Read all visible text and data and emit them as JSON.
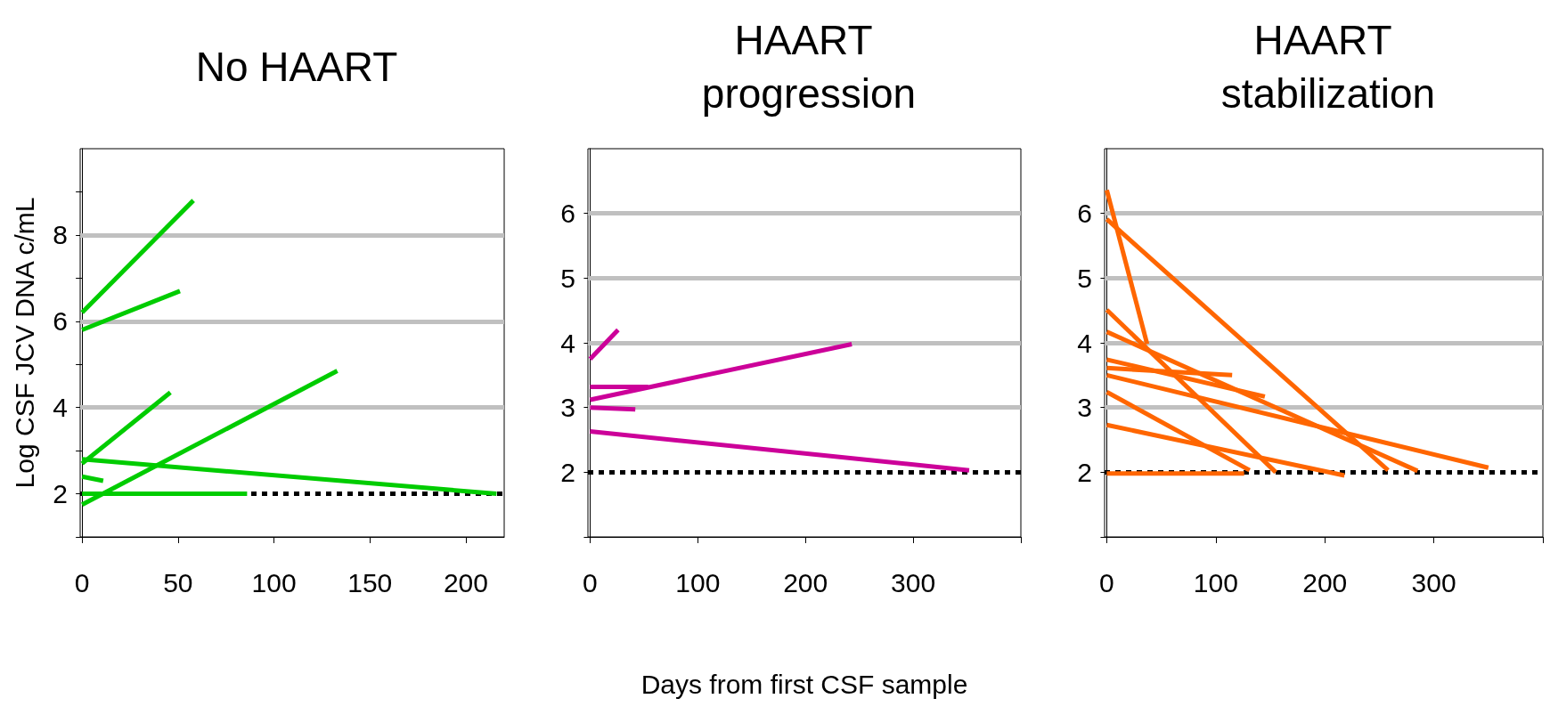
{
  "chart_data": [
    {
      "type": "line",
      "title": "No HAART",
      "ylabel": "Log CSF JCV DNA c/mL",
      "marker": "none",
      "xlim": [
        -1,
        220
      ],
      "xticks": [
        0,
        50,
        100,
        150,
        200
      ],
      "ylim": [
        1,
        10
      ],
      "yticks": [
        {
          "value": 1,
          "label": null
        },
        2,
        {
          "value": 3,
          "label": null
        },
        4,
        {
          "value": 5,
          "label": null
        },
        6,
        {
          "value": 7,
          "label": null
        },
        8,
        {
          "value": 9,
          "label": null
        }
      ],
      "ref_lines": [
        {
          "axis": "y",
          "value": 4,
          "color": "#c0c0c0",
          "line_style": "solid"
        },
        {
          "axis": "y",
          "value": 6,
          "color": "#c0c0c0",
          "line_style": "solid"
        },
        {
          "axis": "y",
          "value": 8,
          "color": "#c0c0c0",
          "line_style": "solid"
        },
        {
          "axis": "y",
          "value": 2,
          "color": "#000000",
          "line_style": "dotted"
        }
      ],
      "series": [
        {
          "color": "#00cc00",
          "x": [
            0,
            58
          ],
          "values": [
            6.2,
            8.8
          ]
        },
        {
          "color": "#00cc00",
          "x": [
            0,
            51
          ],
          "values": [
            5.8,
            6.7
          ]
        },
        {
          "color": "#00cc00",
          "x": [
            0,
            46
          ],
          "values": [
            2.7,
            4.35
          ]
        },
        {
          "color": "#00cc00",
          "x": [
            0,
            133
          ],
          "values": [
            1.75,
            4.85
          ]
        },
        {
          "color": "#00cc00",
          "x": [
            0,
            216
          ],
          "values": [
            2.8,
            2.0
          ]
        },
        {
          "color": "#00cc00",
          "x": [
            0,
            11
          ],
          "values": [
            2.4,
            2.3
          ]
        },
        {
          "color": "#00cc00",
          "x": [
            0,
            86
          ],
          "values": [
            2.0,
            2.0
          ]
        }
      ]
    },
    {
      "type": "line",
      "title": "HAART progression",
      "xlabel": "Days from first CSF sample",
      "marker": "none",
      "xlim": [
        -2,
        400
      ],
      "xticks": [
        0,
        100,
        200,
        300,
        {
          "value": 400,
          "label": null
        }
      ],
      "ylim": [
        1,
        7
      ],
      "yticks": [
        {
          "value": 1,
          "label": null
        },
        2,
        3,
        4,
        5,
        6
      ],
      "ref_lines": [
        {
          "axis": "y",
          "value": 3,
          "color": "#c0c0c0",
          "line_style": "solid"
        },
        {
          "axis": "y",
          "value": 4,
          "color": "#c0c0c0",
          "line_style": "solid"
        },
        {
          "axis": "y",
          "value": 5,
          "color": "#c0c0c0",
          "line_style": "solid"
        },
        {
          "axis": "y",
          "value": 6,
          "color": "#c0c0c0",
          "line_style": "solid"
        },
        {
          "axis": "y",
          "value": 2,
          "color": "#000000",
          "line_style": "dotted"
        }
      ],
      "series": [
        {
          "color": "#cc0099",
          "x": [
            0,
            26
          ],
          "values": [
            3.75,
            4.2
          ]
        },
        {
          "color": "#cc0099",
          "x": [
            0,
            54
          ],
          "values": [
            3.32,
            3.32
          ]
        },
        {
          "color": "#cc0099",
          "x": [
            0,
            243
          ],
          "values": [
            3.12,
            3.98
          ]
        },
        {
          "color": "#cc0099",
          "x": [
            0,
            42
          ],
          "values": [
            3.0,
            2.97
          ]
        },
        {
          "color": "#cc0099",
          "x": [
            0,
            352
          ],
          "values": [
            2.63,
            2.03
          ]
        }
      ]
    },
    {
      "type": "line",
      "title": "HAART stabilization",
      "marker": "none",
      "xlim": [
        -2,
        400
      ],
      "xticks": [
        0,
        100,
        200,
        300,
        {
          "value": 400,
          "label": null
        }
      ],
      "ylim": [
        1,
        7
      ],
      "yticks": [
        {
          "value": 1,
          "label": null
        },
        2,
        3,
        4,
        5,
        6
      ],
      "ref_lines": [
        {
          "axis": "y",
          "value": 3,
          "color": "#c0c0c0",
          "line_style": "solid"
        },
        {
          "axis": "y",
          "value": 4,
          "color": "#c0c0c0",
          "line_style": "solid"
        },
        {
          "axis": "y",
          "value": 5,
          "color": "#c0c0c0",
          "line_style": "solid"
        },
        {
          "axis": "y",
          "value": 6,
          "color": "#c0c0c0",
          "line_style": "solid"
        },
        {
          "axis": "y",
          "value": 2,
          "color": "#000000",
          "line_style": "dotted"
        }
      ],
      "series": [
        {
          "color": "#ff6600",
          "x": [
            0,
            37
          ],
          "values": [
            6.36,
            3.98
          ]
        },
        {
          "color": "#ff6600",
          "x": [
            0,
            258
          ],
          "values": [
            5.91,
            2.03
          ]
        },
        {
          "color": "#ff6600",
          "x": [
            0,
            155
          ],
          "values": [
            4.51,
            2.0
          ]
        },
        {
          "color": "#ff6600",
          "x": [
            0,
            285
          ],
          "values": [
            4.17,
            2.02
          ]
        },
        {
          "color": "#ff6600",
          "x": [
            0,
            145
          ],
          "values": [
            3.74,
            3.17
          ]
        },
        {
          "color": "#ff6600",
          "x": [
            0,
            115
          ],
          "values": [
            3.61,
            3.5
          ]
        },
        {
          "color": "#ff6600",
          "x": [
            0,
            350
          ],
          "values": [
            3.5,
            2.07
          ]
        },
        {
          "color": "#ff6600",
          "x": [
            0,
            131
          ],
          "values": [
            3.24,
            2.03
          ]
        },
        {
          "color": "#ff6600",
          "x": [
            0,
            218
          ],
          "values": [
            2.73,
            1.95
          ]
        },
        {
          "color": "#ff6600",
          "x": [
            0,
            126
          ],
          "values": [
            1.98,
            1.98
          ]
        }
      ]
    }
  ]
}
